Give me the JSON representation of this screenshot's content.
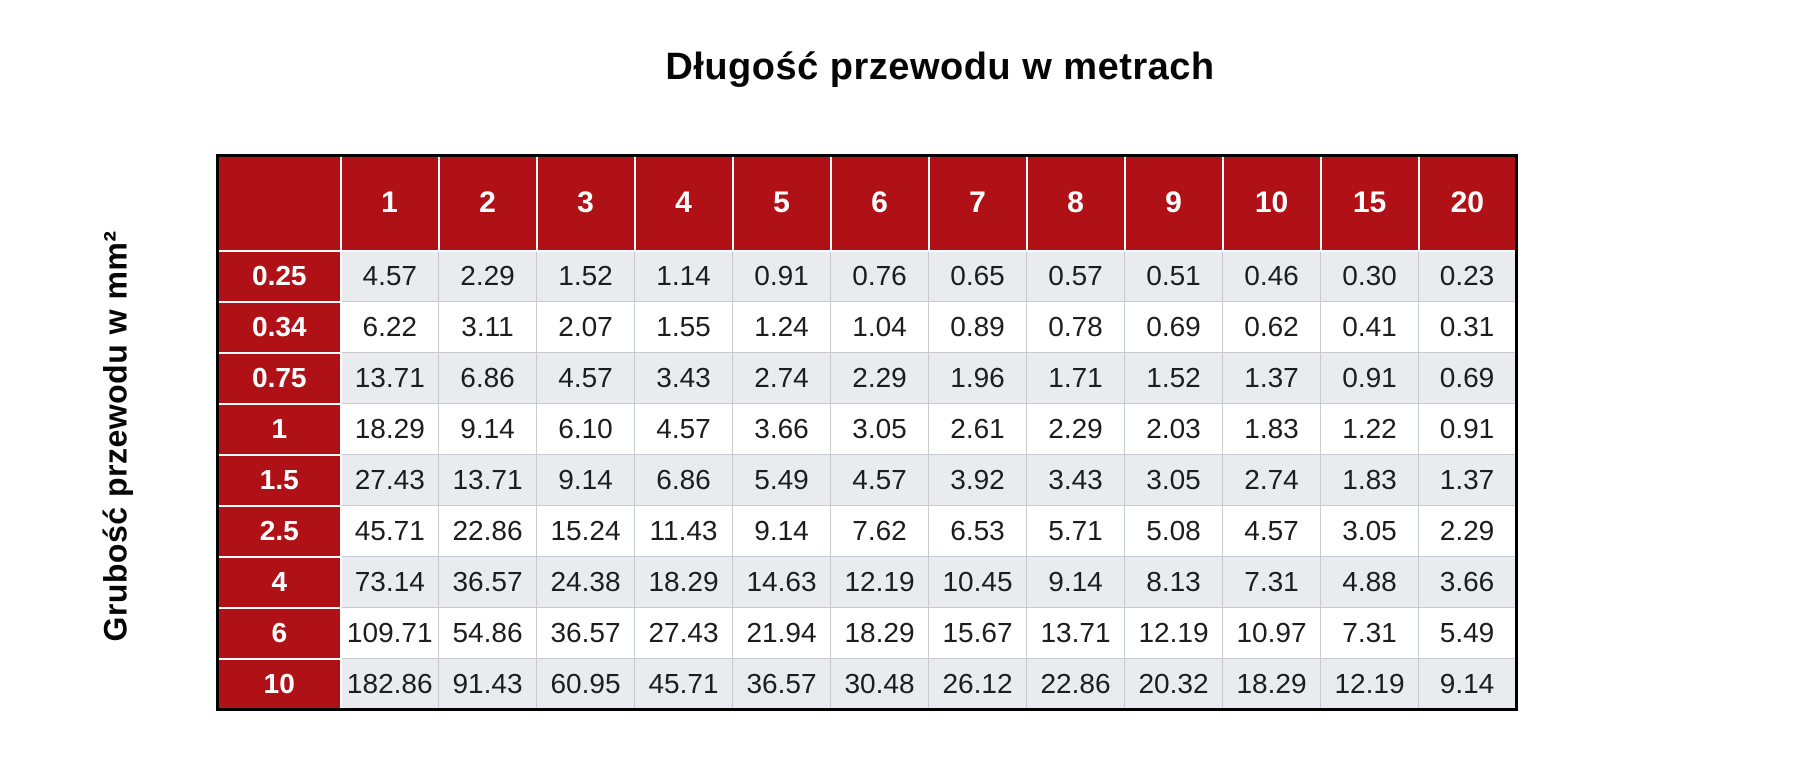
{
  "page": {
    "title": "Długość przewodu w metrach",
    "y_axis_label": "Grubość przewodu w mm²"
  },
  "colors": {
    "header_red": "#b01116",
    "shaded_row": "#e9ebee",
    "plain_row": "#ffffff",
    "grid_line": "#c6cad1",
    "outer_border": "#000000",
    "header_text": "#fdfdfd",
    "cell_text": "#1d1d1f",
    "title_text": "#060606"
  },
  "chart_data": {
    "type": "table",
    "title": "Długość przewodu w metrach",
    "xlabel": "Długość przewodu w metrach",
    "ylabel": "Grubość przewodu w mm²",
    "legend_position": "none",
    "grid": true,
    "columns": [
      "1",
      "2",
      "3",
      "4",
      "5",
      "6",
      "7",
      "8",
      "9",
      "10",
      "15",
      "20"
    ],
    "rows": [
      {
        "header": "0.25",
        "values": [
          "4.57",
          "2.29",
          "1.52",
          "1.14",
          "0.91",
          "0.76",
          "0.65",
          "0.57",
          "0.51",
          "0.46",
          "0.30",
          "0.23"
        ]
      },
      {
        "header": "0.34",
        "values": [
          "6.22",
          "3.11",
          "2.07",
          "1.55",
          "1.24",
          "1.04",
          "0.89",
          "0.78",
          "0.69",
          "0.62",
          "0.41",
          "0.31"
        ]
      },
      {
        "header": "0.75",
        "values": [
          "13.71",
          "6.86",
          "4.57",
          "3.43",
          "2.74",
          "2.29",
          "1.96",
          "1.71",
          "1.52",
          "1.37",
          "0.91",
          "0.69"
        ]
      },
      {
        "header": "1",
        "values": [
          "18.29",
          "9.14",
          "6.10",
          "4.57",
          "3.66",
          "3.05",
          "2.61",
          "2.29",
          "2.03",
          "1.83",
          "1.22",
          "0.91"
        ]
      },
      {
        "header": "1.5",
        "values": [
          "27.43",
          "13.71",
          "9.14",
          "6.86",
          "5.49",
          "4.57",
          "3.92",
          "3.43",
          "3.05",
          "2.74",
          "1.83",
          "1.37"
        ]
      },
      {
        "header": "2.5",
        "values": [
          "45.71",
          "22.86",
          "15.24",
          "11.43",
          "9.14",
          "7.62",
          "6.53",
          "5.71",
          "5.08",
          "4.57",
          "3.05",
          "2.29"
        ]
      },
      {
        "header": "4",
        "values": [
          "73.14",
          "36.57",
          "24.38",
          "18.29",
          "14.63",
          "12.19",
          "10.45",
          "9.14",
          "8.13",
          "7.31",
          "4.88",
          "3.66"
        ]
      },
      {
        "header": "6",
        "values": [
          "109.71",
          "54.86",
          "36.57",
          "27.43",
          "21.94",
          "18.29",
          "15.67",
          "13.71",
          "12.19",
          "10.97",
          "7.31",
          "5.49"
        ]
      },
      {
        "header": "10",
        "values": [
          "182.86",
          "91.43",
          "60.95",
          "45.71",
          "36.57",
          "30.48",
          "26.12",
          "22.86",
          "20.32",
          "18.29",
          "12.19",
          "9.14"
        ]
      }
    ]
  }
}
